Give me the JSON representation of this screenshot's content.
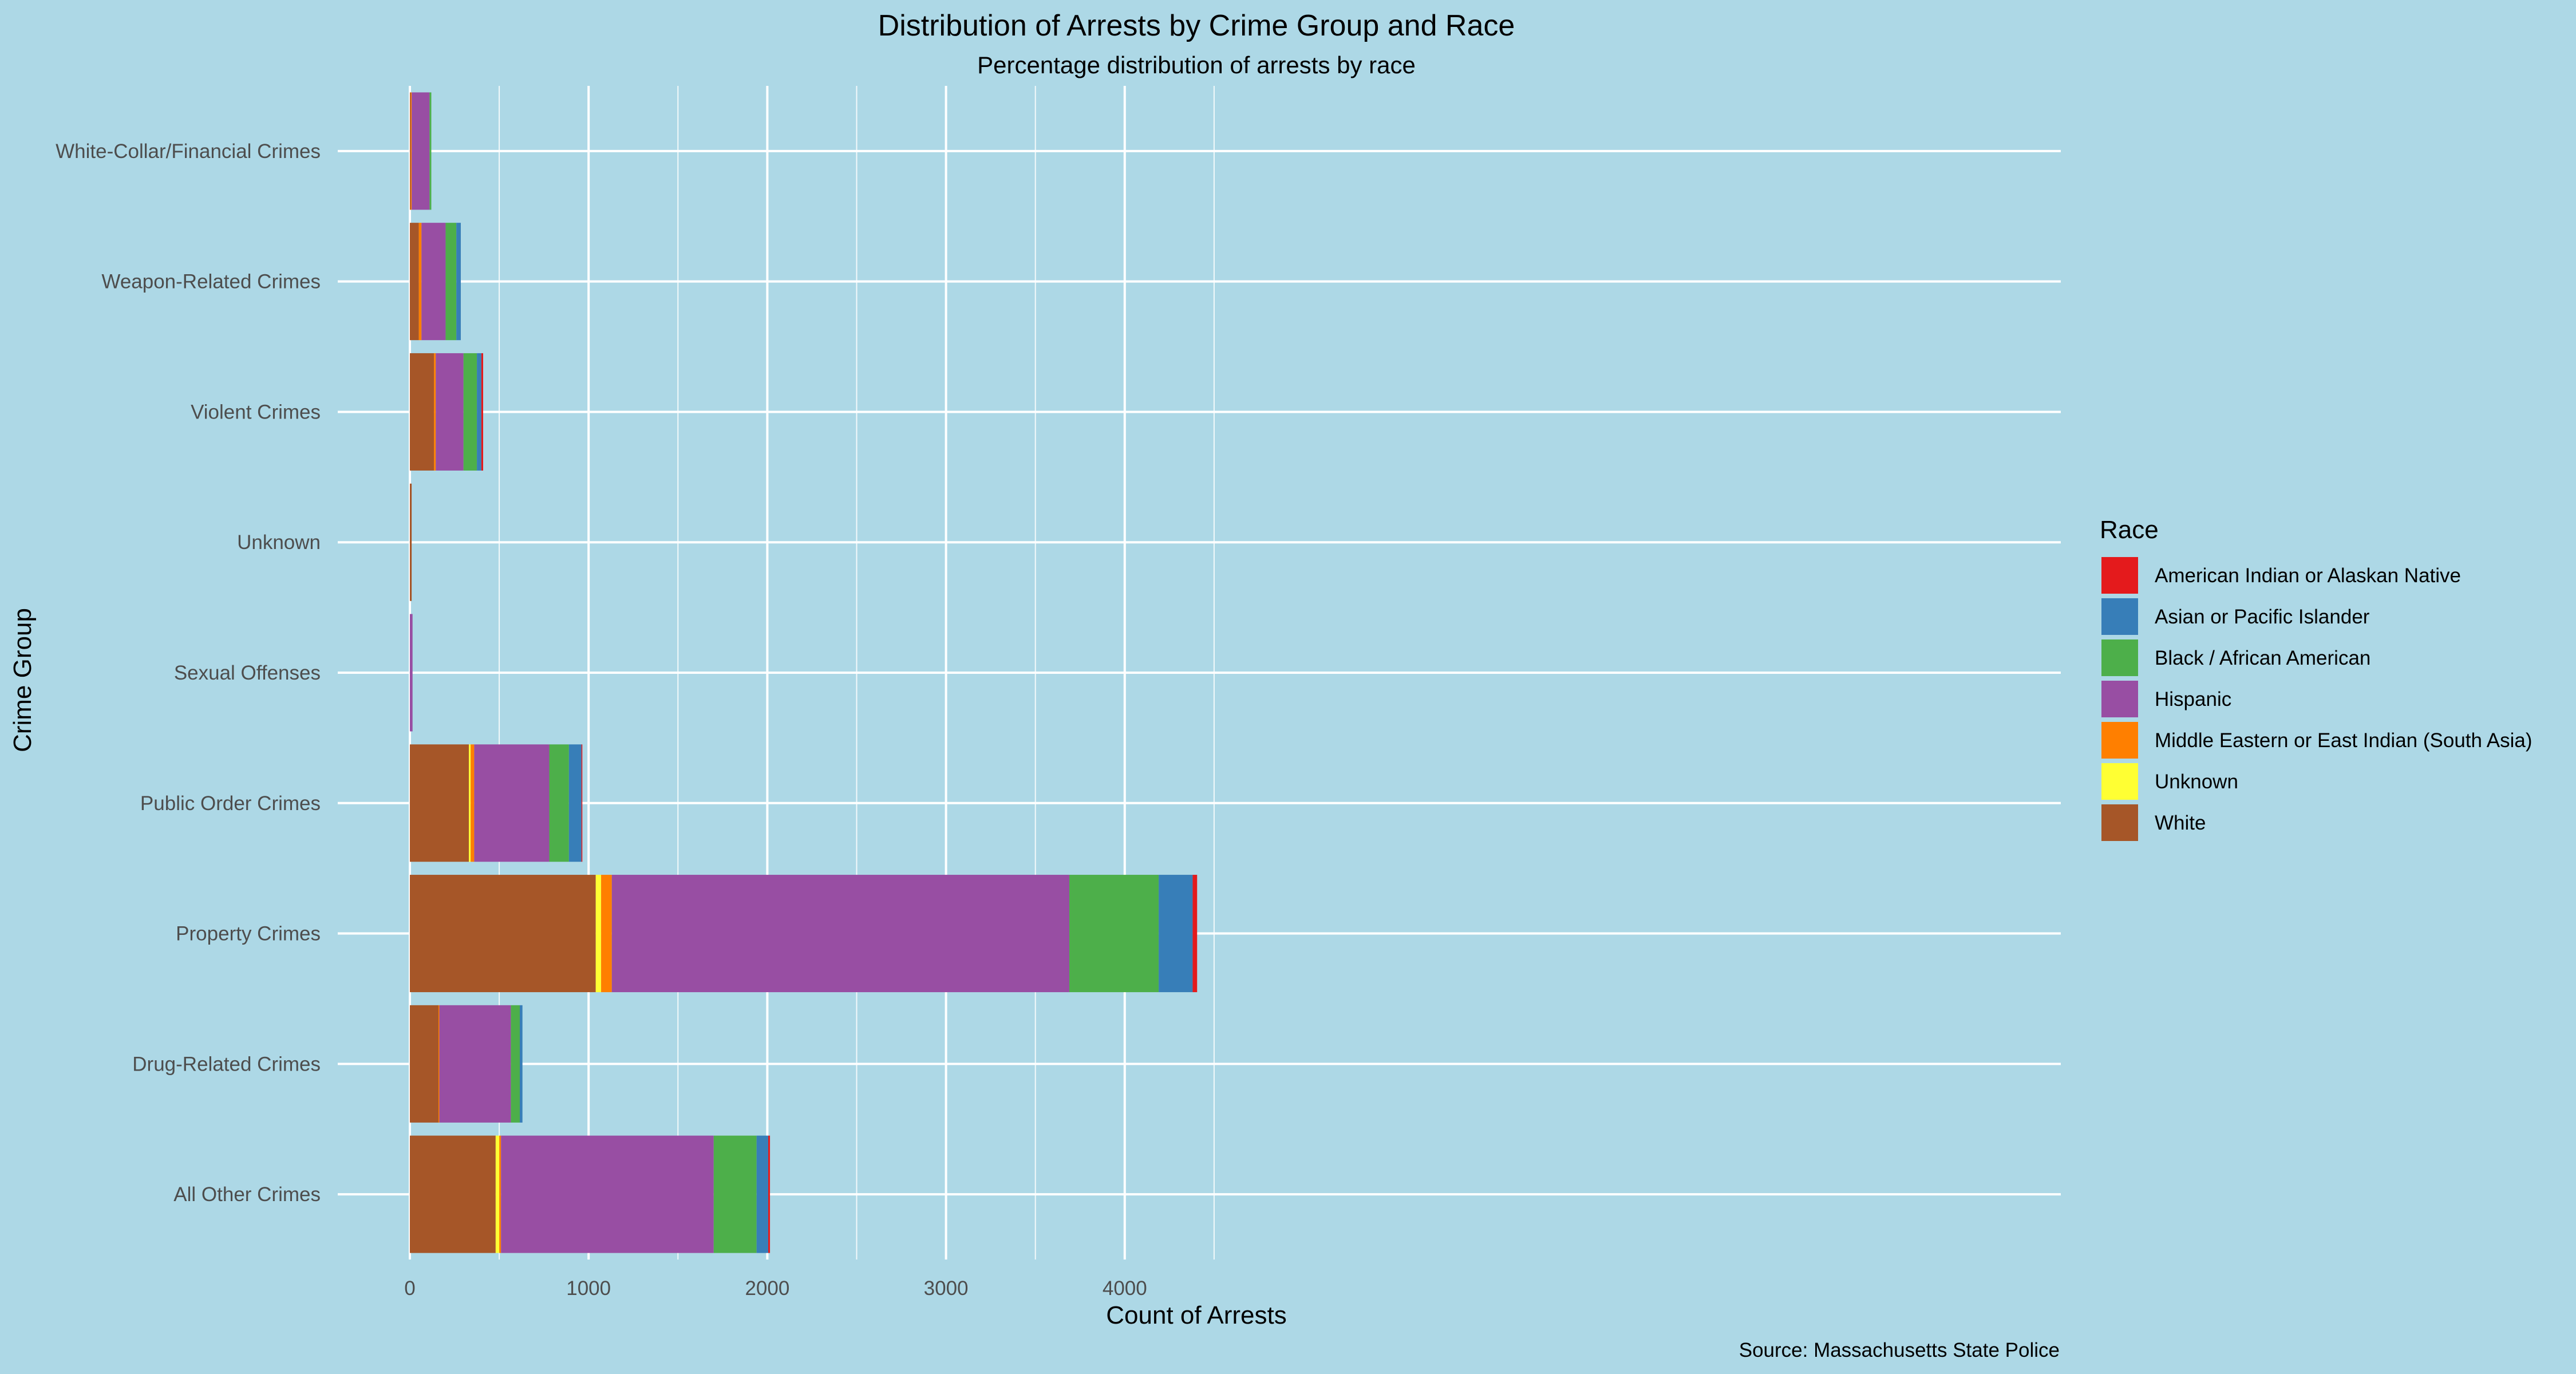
{
  "chart_data": {
    "type": "bar",
    "orientation": "horizontal",
    "stacked": true,
    "title": "Distribution of Arrests by Crime Group and Race",
    "subtitle": "Percentage distribution of arrests by race",
    "xlabel": "Count of Arrests",
    "ylabel": "Crime Group",
    "caption": "Source: Massachusetts State Police",
    "xlim": [
      0,
      4620
    ],
    "x_ticks": [
      0,
      1000,
      2000,
      3000,
      4000
    ],
    "x_tick_labels": [
      "0",
      "1000",
      "2000",
      "3000",
      "4000"
    ],
    "categories": [
      "All Other Crimes",
      "Drug-Related Crimes",
      "Property Crimes",
      "Public Order Crimes",
      "Sexual Offenses",
      "Unknown",
      "Violent Crimes",
      "Weapon-Related Crimes",
      "White-Collar/Financial Crimes"
    ],
    "series": [
      {
        "name": "White",
        "color": "#A65628",
        "values": [
          480,
          160,
          1040,
          330,
          0,
          10,
          135,
          50,
          5
        ]
      },
      {
        "name": "Unknown",
        "color": "#FFFF33",
        "values": [
          20,
          0,
          30,
          10,
          0,
          0,
          0,
          0,
          0
        ]
      },
      {
        "name": "Middle Eastern or East Indian (South Asia)",
        "color": "#FF7F00",
        "values": [
          10,
          5,
          60,
          20,
          0,
          0,
          10,
          15,
          5
        ]
      },
      {
        "name": "Hispanic",
        "color": "#984EA3",
        "values": [
          1190,
          400,
          2560,
          420,
          15,
          0,
          155,
          135,
          100
        ]
      },
      {
        "name": "Black / African American",
        "color": "#4DAF4A",
        "values": [
          240,
          50,
          500,
          110,
          0,
          0,
          75,
          60,
          10
        ]
      },
      {
        "name": "Asian or Pacific Islander",
        "color": "#377EB8",
        "values": [
          65,
          15,
          190,
          70,
          0,
          0,
          25,
          25,
          0
        ]
      },
      {
        "name": "American Indian or Alaskan Native",
        "color": "#E41A1C",
        "values": [
          10,
          0,
          25,
          5,
          0,
          0,
          10,
          0,
          0
        ]
      }
    ],
    "legend": {
      "title": "Race",
      "position": "right",
      "entries": [
        {
          "name": "American Indian or Alaskan Native",
          "color": "#E41A1C"
        },
        {
          "name": "Asian or Pacific Islander",
          "color": "#377EB8"
        },
        {
          "name": "Black / African American",
          "color": "#4DAF4A"
        },
        {
          "name": "Hispanic",
          "color": "#984EA3"
        },
        {
          "name": "Middle Eastern or East Indian (South Asia)",
          "color": "#FF7F00"
        },
        {
          "name": "Unknown",
          "color": "#FFFF33"
        },
        {
          "name": "White",
          "color": "#A65628"
        }
      ]
    },
    "grid": true,
    "background_color": "#ADD8E6"
  }
}
